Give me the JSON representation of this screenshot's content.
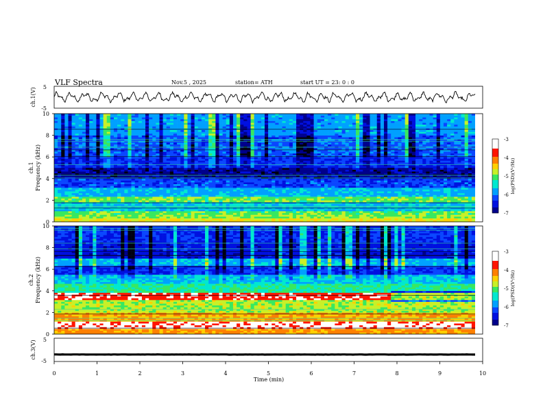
{
  "header": {
    "title": "VLF  Spectra",
    "date": "Nov.5  , 2025",
    "station": "station= ATH",
    "start_ut": "start  UT  =    23: 0   : 0"
  },
  "chart_data": [
    {
      "type": "line",
      "panel": "ch1-waveform",
      "ylabel": "ch.1(V)",
      "ylim": [
        -5,
        5
      ],
      "yticks": [
        "5",
        "-5"
      ],
      "xlim": [
        0,
        10
      ],
      "description_values": {
        "baseline": 0,
        "oscillation_amplitude": 1.8
      }
    },
    {
      "type": "heatmap",
      "panel": "ch1-spectrogram",
      "ylabel": "ch.1\nFrequency  (kHz)",
      "ylim": [
        0,
        10
      ],
      "yticks": [
        "0",
        "2",
        "4",
        "6",
        "8",
        "10"
      ],
      "xlim": [
        0,
        10
      ],
      "colorbar": {
        "label": "log(PSD)(V²/Hz)",
        "range": [
          -7,
          -3
        ],
        "ticks": [
          "-3",
          "-4",
          "-5",
          "-6",
          "-7"
        ]
      },
      "bands": [
        {
          "f0": 0.0,
          "f1": 0.3,
          "level": -4.6
        },
        {
          "f0": 0.3,
          "f1": 0.6,
          "level": -4.9
        },
        {
          "f0": 0.6,
          "f1": 1.0,
          "level": -5.0
        },
        {
          "f0": 1.0,
          "f1": 1.8,
          "level": -5.6
        },
        {
          "f0": 1.8,
          "f1": 2.3,
          "level": -5.0
        },
        {
          "f0": 2.3,
          "f1": 3.2,
          "level": -5.7
        },
        {
          "f0": 3.2,
          "f1": 4.0,
          "level": -6.2
        },
        {
          "f0": 4.0,
          "f1": 5.0,
          "level": -6.8
        },
        {
          "f0": 5.0,
          "f1": 6.0,
          "level": -6.3
        },
        {
          "f0": 6.0,
          "f1": 8.0,
          "level": -6.1
        },
        {
          "f0": 8.0,
          "f1": 10.0,
          "level": -5.8
        }
      ]
    },
    {
      "type": "heatmap",
      "panel": "ch2-spectrogram",
      "ylabel": "ch.2\nFrequency  (kHz)",
      "ylim": [
        0,
        10
      ],
      "yticks": [
        "0",
        "2",
        "4",
        "6",
        "8",
        "10"
      ],
      "xlim": [
        0,
        10
      ],
      "colorbar": {
        "label": "log(PSD)(V²/Hz)",
        "range": [
          -7,
          -3
        ],
        "ticks": [
          "-3",
          "-4",
          "-5",
          "-6",
          "-7"
        ]
      },
      "bands": [
        {
          "f0": 0.0,
          "f1": 0.5,
          "level": -4.2
        },
        {
          "f0": 0.5,
          "f1": 1.2,
          "level": -3.4
        },
        {
          "f0": 1.2,
          "f1": 2.0,
          "level": -4.3
        },
        {
          "f0": 2.0,
          "f1": 3.2,
          "level": -4.8
        },
        {
          "f0": 3.2,
          "f1": 3.8,
          "level": -3.6
        },
        {
          "f0": 3.8,
          "f1": 4.6,
          "level": -5.2
        },
        {
          "f0": 4.6,
          "f1": 5.5,
          "level": -5.6
        },
        {
          "f0": 5.5,
          "f1": 6.3,
          "level": -6.3
        },
        {
          "f0": 6.3,
          "f1": 7.0,
          "level": -5.7
        },
        {
          "f0": 7.0,
          "f1": 8.5,
          "level": -6.5
        },
        {
          "f0": 8.5,
          "f1": 10.0,
          "level": -6.3
        }
      ],
      "change_at_time_min": 8
    },
    {
      "type": "line",
      "panel": "ch3-waveform",
      "ylabel": "ch.3(V)",
      "ylim": [
        -5,
        5
      ],
      "yticks": [
        "5",
        "-5"
      ],
      "xlim": [
        0,
        10
      ],
      "xlabel": "Time  (min)",
      "xticks": [
        "0",
        "1",
        "2",
        "3",
        "4",
        "5",
        "6",
        "7",
        "8",
        "9",
        "10"
      ],
      "description_values": {
        "baseline": -2,
        "oscillation_amplitude": 0.1
      }
    }
  ],
  "colors": {
    "scale": [
      "#ffffff",
      "#000000",
      "#0000c8",
      "#0a3cff",
      "#00aaff",
      "#00e0c0",
      "#30e060",
      "#d8f020",
      "#ffc000",
      "#ff2000",
      "#ffffff"
    ]
  }
}
